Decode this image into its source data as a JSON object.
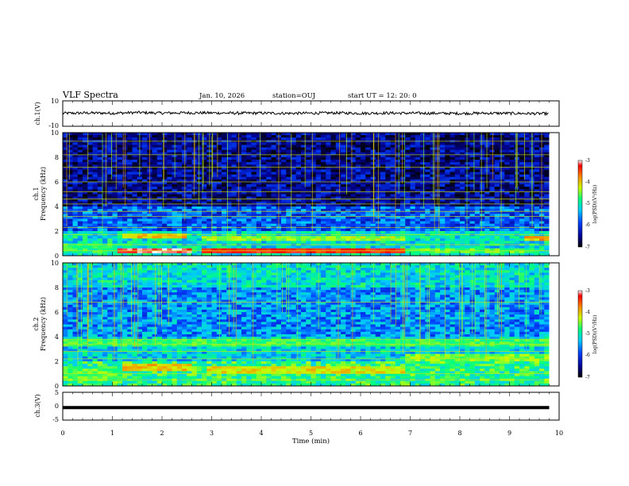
{
  "header": {
    "title": "VLF Spectra",
    "date": "Jan. 10, 2026",
    "station": "station=OUJ",
    "start_ut": "start UT =  12: 20: 0"
  },
  "chart_data": [
    {
      "type": "line",
      "name": "ch1-waveform",
      "ylabel": "ch.1(V)",
      "ylim": [
        -10,
        10
      ],
      "y_ticks": [
        "10",
        "-10"
      ],
      "x": [
        0,
        0.5,
        1,
        1.5,
        2,
        2.5,
        3,
        3.5,
        4,
        4.5,
        5,
        5.5,
        6,
        6.5,
        7,
        7.5,
        8,
        8.5,
        9,
        9.5,
        9.8
      ],
      "y": [
        0.2,
        0.5,
        0.3,
        0.8,
        0.4,
        0.6,
        0.5,
        0.3,
        0.4,
        0.2,
        0.3,
        0.5,
        0.2,
        0.4,
        0.3,
        0.2,
        0.1,
        0.3,
        0.2,
        0.0,
        -0.1
      ]
    },
    {
      "type": "heatmap",
      "name": "ch1-spectrogram",
      "ylabel": "ch.1",
      "ylabel2": "Frequency (kHz)",
      "ylim": [
        0,
        10
      ],
      "y_ticks": [
        "0",
        "2",
        "4",
        "6",
        "8",
        "10"
      ],
      "colorbar": {
        "label": "log(PSD)(V²/Hz)",
        "range": [
          -7,
          -3
        ],
        "ticks": [
          "-3",
          "-4",
          "-5",
          "-6",
          "-7"
        ]
      },
      "lines_khz": [
        0.4,
        0.9,
        1.7,
        2.3,
        3.2,
        3.6,
        4.2,
        4.6,
        5.2,
        6.0,
        7.2,
        8.2,
        9.3
      ],
      "bands": [
        {
          "x": [
            0,
            1.1
          ],
          "f": [
            0.2,
            0.9
          ],
          "level": -5.0
        },
        {
          "x": [
            1.1,
            2.6
          ],
          "f": [
            0.3,
            0.6
          ],
          "level": -3.2
        },
        {
          "x": [
            1.2,
            2.5
          ],
          "f": [
            1.4,
            1.8
          ],
          "level": -4.2
        },
        {
          "x": [
            2.8,
            6.9
          ],
          "f": [
            0.2,
            0.5
          ],
          "level": -3.6
        },
        {
          "x": [
            2.8,
            6.9
          ],
          "f": [
            1.3,
            1.7
          ],
          "level": -4.6
        },
        {
          "x": [
            6.9,
            9.3
          ],
          "f": [
            0.2,
            0.5
          ],
          "level": -4.8
        },
        {
          "x": [
            9.3,
            9.8
          ],
          "f": [
            1.3,
            1.7
          ],
          "level": -4.2
        }
      ]
    },
    {
      "type": "heatmap",
      "name": "ch2-spectrogram",
      "ylabel": "ch.2",
      "ylabel2": "Frequency (kHz)",
      "ylim": [
        0,
        10
      ],
      "y_ticks": [
        "0",
        "2",
        "4",
        "6",
        "8",
        "10"
      ],
      "colorbar": {
        "label": "log(PSD)(V²/Hz)",
        "range": [
          -7,
          -3
        ],
        "ticks": [
          "-3",
          "-4",
          "-5",
          "-6",
          "-7"
        ]
      },
      "lines_khz": [
        0.5,
        1.0,
        2.2,
        2.8,
        3.4,
        3.8,
        6.8
      ],
      "bands": [
        {
          "x": [
            0,
            1.2
          ],
          "f": [
            0.5,
            1.4
          ],
          "level": -4.8
        },
        {
          "x": [
            1.2,
            2.6
          ],
          "f": [
            1.2,
            1.8
          ],
          "level": -4.3
        },
        {
          "x": [
            2.9,
            6.9
          ],
          "f": [
            1.1,
            1.6
          ],
          "level": -4.4
        },
        {
          "x": [
            6.9,
            9.8
          ],
          "f": [
            2.1,
            2.5
          ],
          "level": -4.7
        },
        {
          "x": [
            0,
            9.8
          ],
          "f": [
            3.2,
            3.8
          ],
          "level": -4.9
        }
      ]
    },
    {
      "type": "line",
      "name": "ch3-waveform",
      "ylabel": "ch.3(V)",
      "ylim": [
        -5,
        5
      ],
      "y_ticks": [
        "5",
        "0",
        "-5"
      ],
      "x": [
        0,
        9.8
      ],
      "y": [
        -0.5,
        -0.5
      ]
    }
  ],
  "x_axis": {
    "label": "Time (min)",
    "range": [
      0,
      10
    ],
    "ticks": [
      "0",
      "1",
      "2",
      "3",
      "4",
      "5",
      "6",
      "7",
      "8",
      "9",
      "10"
    ]
  },
  "colors": {
    "bg": "#ffffff",
    "axis": "#000000",
    "colormap": [
      "#000000",
      "#000090",
      "#0040ff",
      "#00c8ff",
      "#00ff80",
      "#c8ff00",
      "#ff8000",
      "#ff0000",
      "#ffffff"
    ]
  }
}
